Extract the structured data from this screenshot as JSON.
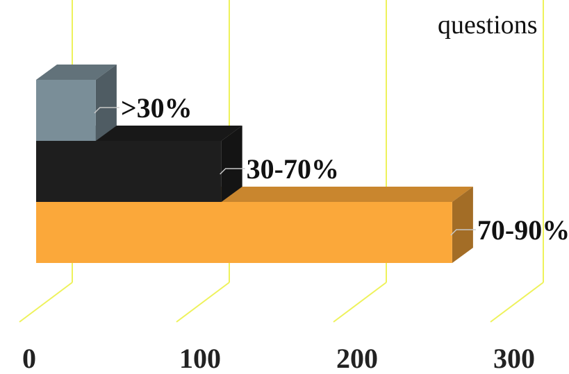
{
  "chart_data": {
    "type": "bar",
    "orientation": "horizontal",
    "style": "3d",
    "title": "questions",
    "categories": [
      "70-90%",
      "30-70%",
      ">30%"
    ],
    "values": [
      265,
      118,
      38
    ],
    "colors": [
      "#FBA83A",
      "#1E1E1E",
      "#7A8E98"
    ],
    "xticks": [
      "0",
      "100",
      "200",
      "300"
    ],
    "xlim": [
      0,
      300
    ],
    "grid_color": "#EEF25A",
    "grid": true,
    "legend": "none"
  }
}
